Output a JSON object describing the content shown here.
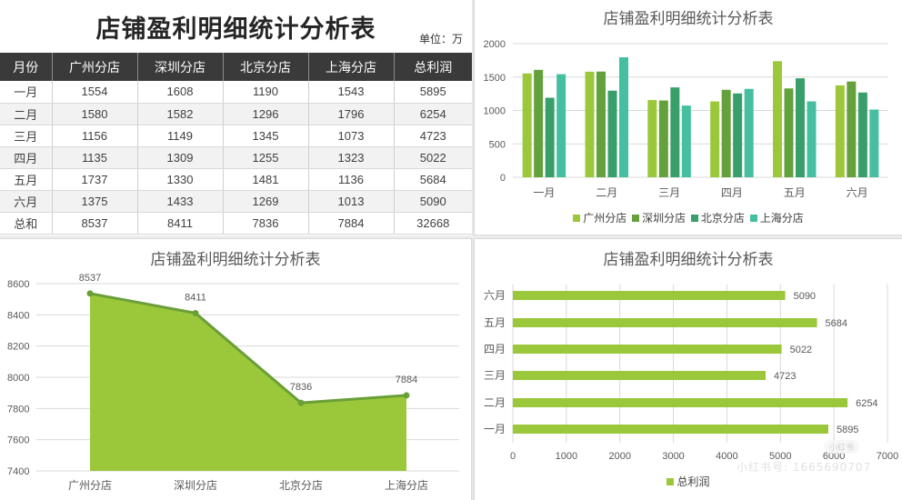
{
  "table": {
    "title": "店铺盈利明细统计分析表",
    "unit": "单位：万",
    "headers": [
      "月份",
      "广州分店",
      "深圳分店",
      "北京分店",
      "上海分店",
      "总利润"
    ],
    "rows": [
      [
        "一月",
        "1554",
        "1608",
        "1190",
        "1543",
        "5895"
      ],
      [
        "二月",
        "1580",
        "1582",
        "1296",
        "1796",
        "6254"
      ],
      [
        "三月",
        "1156",
        "1149",
        "1345",
        "1073",
        "4723"
      ],
      [
        "四月",
        "1135",
        "1309",
        "1255",
        "1323",
        "5022"
      ],
      [
        "五月",
        "1737",
        "1330",
        "1481",
        "1136",
        "5684"
      ],
      [
        "六月",
        "1375",
        "1433",
        "1269",
        "1013",
        "5090"
      ],
      [
        "总和",
        "8537",
        "8411",
        "7836",
        "7884",
        "32668"
      ]
    ]
  },
  "colors": {
    "guangzhou": "#9bc83a",
    "shenzhen": "#64a03c",
    "beijing": "#389e6a",
    "shanghai": "#45bf9f",
    "area_fill": "#9bc83a",
    "area_line": "#6a9f38",
    "hbar": "#9bc83a",
    "header_bg": "#3a3a3a",
    "grid": "#d9d9d9"
  },
  "chart_data": [
    {
      "type": "bar",
      "title": "店铺盈利明细统计分析表",
      "categories": [
        "一月",
        "二月",
        "三月",
        "四月",
        "五月",
        "六月"
      ],
      "series": [
        {
          "name": "广州分店",
          "values": [
            1554,
            1580,
            1156,
            1135,
            1737,
            1375
          ]
        },
        {
          "name": "深圳分店",
          "values": [
            1608,
            1582,
            1149,
            1309,
            1330,
            1433
          ]
        },
        {
          "name": "北京分店",
          "values": [
            1190,
            1296,
            1345,
            1255,
            1481,
            1269
          ]
        },
        {
          "name": "上海分店",
          "values": [
            1543,
            1796,
            1073,
            1323,
            1136,
            1013
          ]
        }
      ],
      "yticks": [
        0,
        500,
        1000,
        1500,
        2000
      ],
      "ylim": [
        0,
        2000
      ],
      "grid": true,
      "legend_position": "bottom",
      "xlabel": "",
      "ylabel": ""
    },
    {
      "type": "area",
      "title": "店铺盈利明细统计分析表",
      "categories": [
        "广州分店",
        "深圳分店",
        "北京分店",
        "上海分店"
      ],
      "values": [
        8537,
        8411,
        7836,
        7884
      ],
      "data_labels": [
        "8537",
        "8411",
        "7836",
        "7884"
      ],
      "yticks": [
        7400,
        7600,
        7800,
        8000,
        8200,
        8400,
        8600
      ],
      "ylim": [
        7400,
        8600
      ],
      "grid": true,
      "xlabel": "",
      "ylabel": ""
    },
    {
      "type": "bar",
      "orientation": "horizontal",
      "title": "店铺盈利明细统计分析表",
      "categories": [
        "一月",
        "二月",
        "三月",
        "四月",
        "五月",
        "六月"
      ],
      "series": [
        {
          "name": "总利润",
          "values": [
            5895,
            6254,
            4723,
            5022,
            5684,
            5090
          ]
        }
      ],
      "data_labels": [
        "5895",
        "6254",
        "4723",
        "5022",
        "5684",
        "5090"
      ],
      "xticks": [
        0,
        1000,
        2000,
        3000,
        4000,
        5000,
        6000,
        7000
      ],
      "xlim": [
        0,
        7000
      ],
      "grid": true,
      "legend_position": "bottom",
      "xlabel": "",
      "ylabel": ""
    }
  ],
  "charts": {
    "bar_title": "店铺盈利明细统计分析表",
    "area_title": "店铺盈利明细统计分析表",
    "hbar_title": "店铺盈利明细统计分析表",
    "bar_legend": [
      "广州分店",
      "深圳分店",
      "北京分店",
      "上海分店"
    ],
    "hbar_legend": "总利润"
  },
  "watermark": {
    "text": "小红书号: 1665690707",
    "badge": "小红书"
  }
}
